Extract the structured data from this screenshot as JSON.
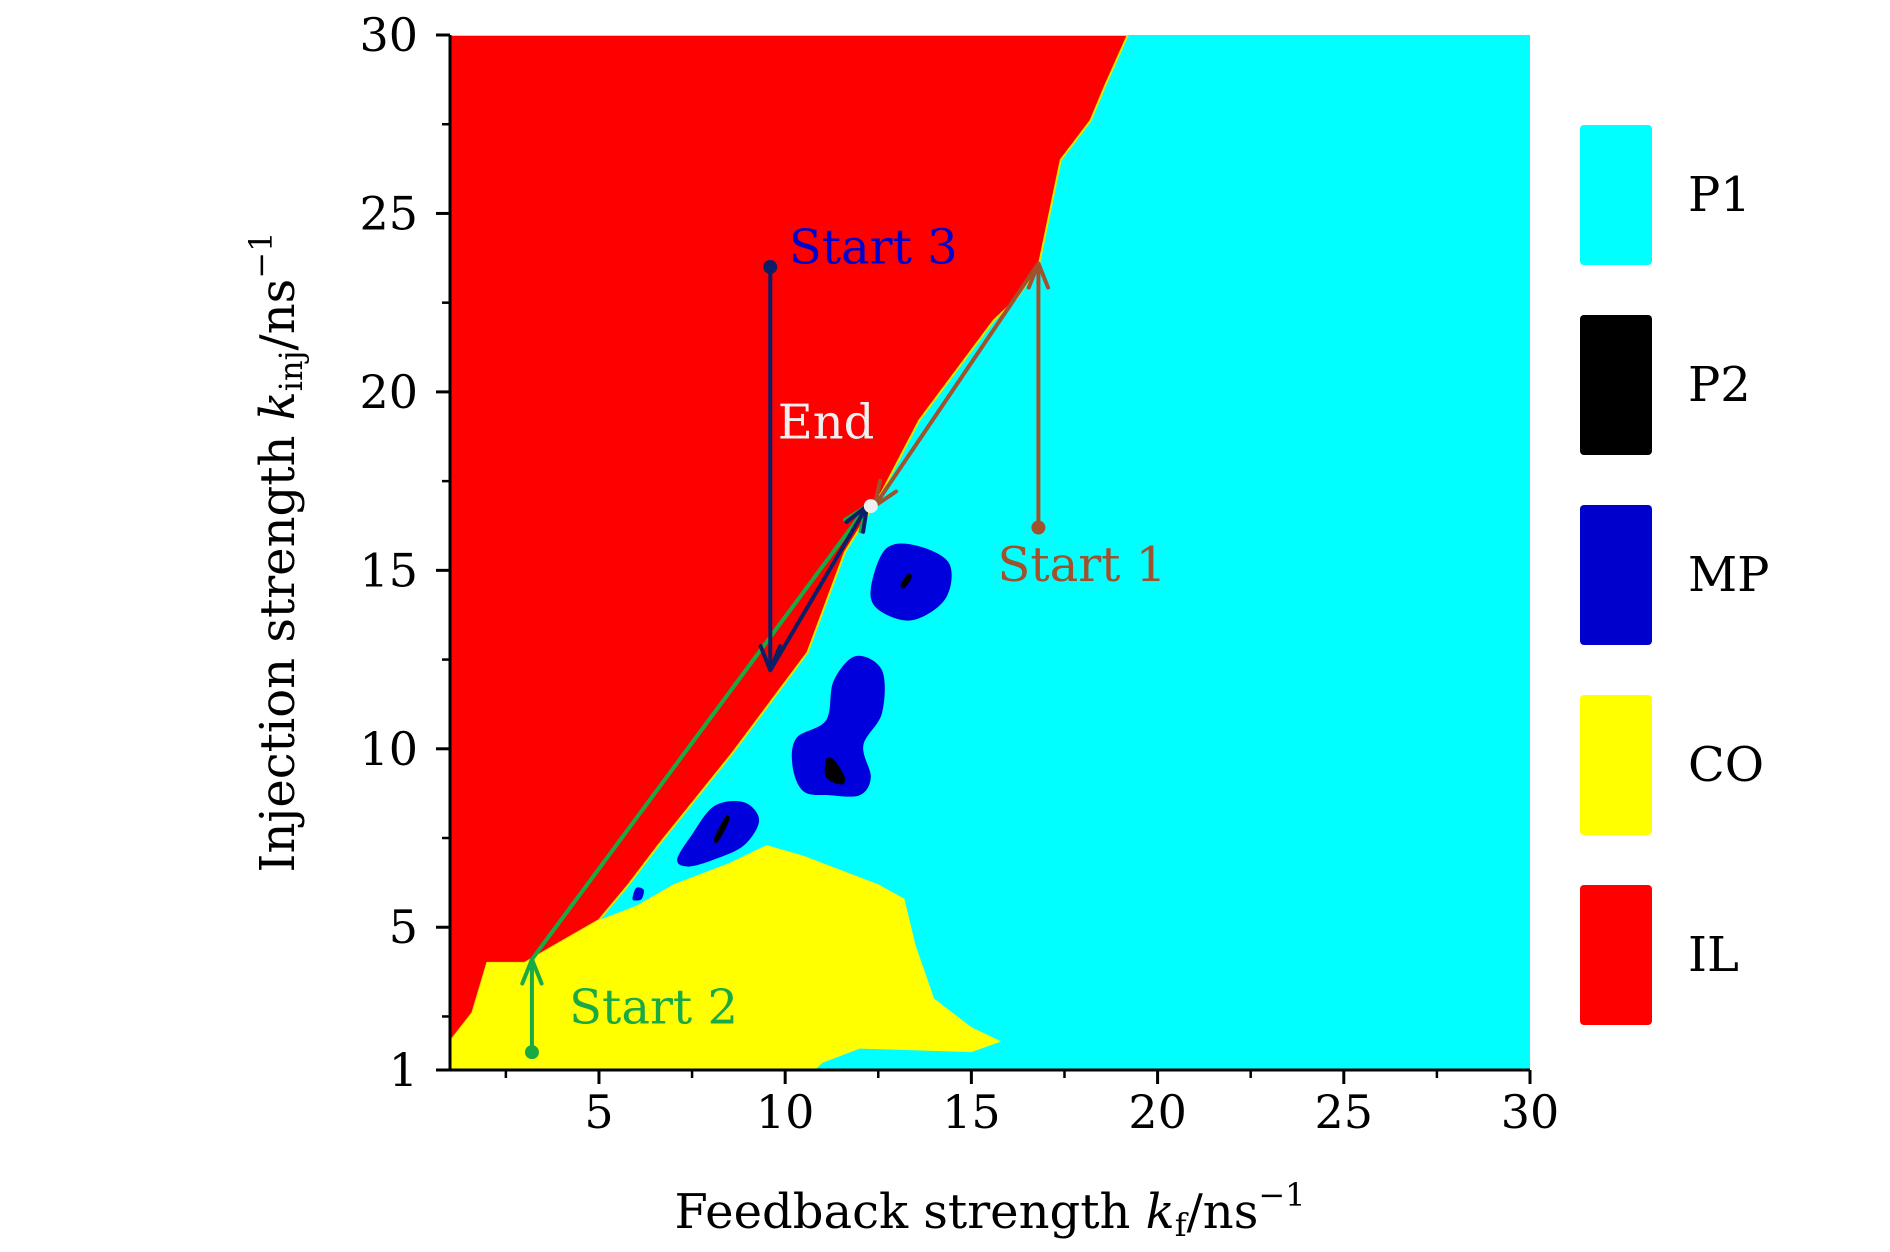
{
  "chart_data": {
    "type": "heatmap",
    "title": "",
    "xlabel": "Feedback strength k_f/ns^-1",
    "ylabel": "Injection strength k_inj/ns^-1",
    "xlabel_parts": {
      "prefix": "Feedback strength ",
      "var": "k",
      "sub": "f",
      "unit": "/ns",
      "sup": "−1"
    },
    "ylabel_parts": {
      "prefix": "Injection strength ",
      "var": "k",
      "sub": "inj",
      "unit": "/ns",
      "sup": "−1"
    },
    "xlim": [
      1,
      30
    ],
    "ylim": [
      1,
      30
    ],
    "xticks": [
      5,
      10,
      15,
      20,
      25,
      30
    ],
    "yticks": [
      1,
      5,
      10,
      15,
      20,
      25,
      30
    ],
    "grid": false,
    "legend_position": "right",
    "legend": [
      {
        "label": "P1",
        "color": "#00ffff"
      },
      {
        "label": "P2",
        "color": "#000000"
      },
      {
        "label": "MP",
        "color": "#0000cc"
      },
      {
        "label": "CO",
        "color": "#ffff00"
      },
      {
        "label": "IL",
        "color": "#ff0000"
      }
    ],
    "regions": [
      {
        "name": "IL",
        "color": "#ff0000",
        "points": [
          [
            1,
            1.8
          ],
          [
            1.6,
            2.6
          ],
          [
            2,
            4
          ],
          [
            3,
            4
          ],
          [
            4,
            4.6
          ],
          [
            5,
            5.2
          ],
          [
            5.8,
            6.2
          ],
          [
            6.6,
            7.3
          ],
          [
            7.6,
            8.6
          ],
          [
            8.6,
            9.9
          ],
          [
            9.6,
            11.3
          ],
          [
            10.6,
            12.7
          ],
          [
            11.6,
            15.5
          ],
          [
            12.6,
            17.2
          ],
          [
            13.6,
            19.2
          ],
          [
            14.6,
            20.6
          ],
          [
            15.6,
            22
          ],
          [
            16.2,
            22.6
          ],
          [
            16.8,
            23.5
          ],
          [
            17.4,
            26.5
          ],
          [
            18.2,
            27.6
          ],
          [
            18.6,
            28.6
          ],
          [
            19.2,
            30
          ],
          [
            1,
            30
          ]
        ]
      },
      {
        "name": "CO",
        "color": "#ffff00",
        "points": [
          [
            1,
            1
          ],
          [
            1,
            1.8
          ],
          [
            1.6,
            2.6
          ],
          [
            2,
            4
          ],
          [
            3,
            4
          ],
          [
            4,
            4.6
          ],
          [
            5,
            5.2
          ],
          [
            6,
            5.6
          ],
          [
            7,
            6.2
          ],
          [
            8.5,
            6.8
          ],
          [
            9.5,
            7.3
          ],
          [
            10.5,
            7
          ],
          [
            11.5,
            6.6
          ],
          [
            12.5,
            6.2
          ],
          [
            13.2,
            5.8
          ],
          [
            13.5,
            4.5
          ],
          [
            14,
            3
          ],
          [
            15,
            2.2
          ],
          [
            15.8,
            1.8
          ],
          [
            15,
            1.5
          ],
          [
            12,
            1.6
          ],
          [
            11,
            1.2
          ],
          [
            10.8,
            1
          ]
        ]
      },
      {
        "name": "MP",
        "color": "#0000dd",
        "points": [
          [
            12.3,
            14.5
          ],
          [
            12.7,
            15.6
          ],
          [
            13.5,
            15.7
          ],
          [
            14.4,
            15.2
          ],
          [
            14.3,
            14.2
          ],
          [
            13.4,
            13.6
          ],
          [
            12.5,
            13.9
          ]
        ]
      },
      {
        "name": "MP",
        "color": "#0000dd",
        "points": [
          [
            10.2,
            9.5
          ],
          [
            10.3,
            10.3
          ],
          [
            11.1,
            10.8
          ],
          [
            11.3,
            11.9
          ],
          [
            11.9,
            12.6
          ],
          [
            12.6,
            12.2
          ],
          [
            12.6,
            11
          ],
          [
            12.1,
            10.1
          ],
          [
            12.3,
            9.2
          ],
          [
            12,
            8.7
          ],
          [
            11.2,
            8.7
          ],
          [
            10.5,
            8.8
          ]
        ]
      },
      {
        "name": "MP",
        "color": "#0000dd",
        "points": [
          [
            7.1,
            6.9
          ],
          [
            7.5,
            7.6
          ],
          [
            8.1,
            8.4
          ],
          [
            8.9,
            8.5
          ],
          [
            9.3,
            8
          ],
          [
            8.9,
            7.3
          ],
          [
            8.1,
            6.9
          ],
          [
            7.4,
            6.7
          ]
        ]
      },
      {
        "name": "MP",
        "color": "#0000dd",
        "points": [
          [
            5.9,
            5.8
          ],
          [
            6,
            6.1
          ],
          [
            6.2,
            6.05
          ],
          [
            6.15,
            5.8
          ],
          [
            6,
            5.75
          ]
        ]
      },
      {
        "name": "P2",
        "color": "#000000",
        "points": [
          [
            11.1,
            9.7
          ],
          [
            11.3,
            9.7
          ],
          [
            11.6,
            9.2
          ],
          [
            11.5,
            9
          ],
          [
            11.1,
            9.2
          ]
        ]
      },
      {
        "name": "P2",
        "color": "#000000",
        "points": [
          [
            8.1,
            7.5
          ],
          [
            8.4,
            8.1
          ],
          [
            8.5,
            8
          ],
          [
            8.2,
            7.4
          ]
        ]
      },
      {
        "name": "P2",
        "color": "#000000",
        "points": [
          [
            13.1,
            14.6
          ],
          [
            13.3,
            14.9
          ],
          [
            13.4,
            14.8
          ],
          [
            13.2,
            14.5
          ]
        ]
      }
    ],
    "paths": [
      {
        "name": "Start 1",
        "color": "#a0522d",
        "start": [
          16.8,
          16.2
        ],
        "end": [
          12.4,
          16.8
        ],
        "via": [
          [
            16.8,
            23.6
          ]
        ]
      },
      {
        "name": "Start 2",
        "color": "#1aaa44",
        "start": [
          3.2,
          1.5
        ],
        "end": [
          12.2,
          16.8
        ],
        "via": [
          [
            3.2,
            4.1
          ]
        ]
      },
      {
        "name": "Start 3",
        "color": "#0d1e66",
        "start": [
          9.6,
          23.5
        ],
        "end": [
          12.2,
          16.8
        ],
        "via": [
          [
            9.6,
            12.2
          ]
        ]
      }
    ],
    "end_point": [
      12.3,
      16.8
    ],
    "annotations": [
      {
        "text": "Start 1",
        "x": 15.7,
        "y": 14.7,
        "color": "#a0522d"
      },
      {
        "text": "Start 2",
        "x": 4.2,
        "y": 2.3,
        "color": "#1aaa44"
      },
      {
        "text": "Start 3",
        "x": 10.1,
        "y": 23.6,
        "color": "#0000cc"
      },
      {
        "text": "End",
        "x": 9.8,
        "y": 18.7,
        "color": "#f0f0f0"
      }
    ]
  }
}
